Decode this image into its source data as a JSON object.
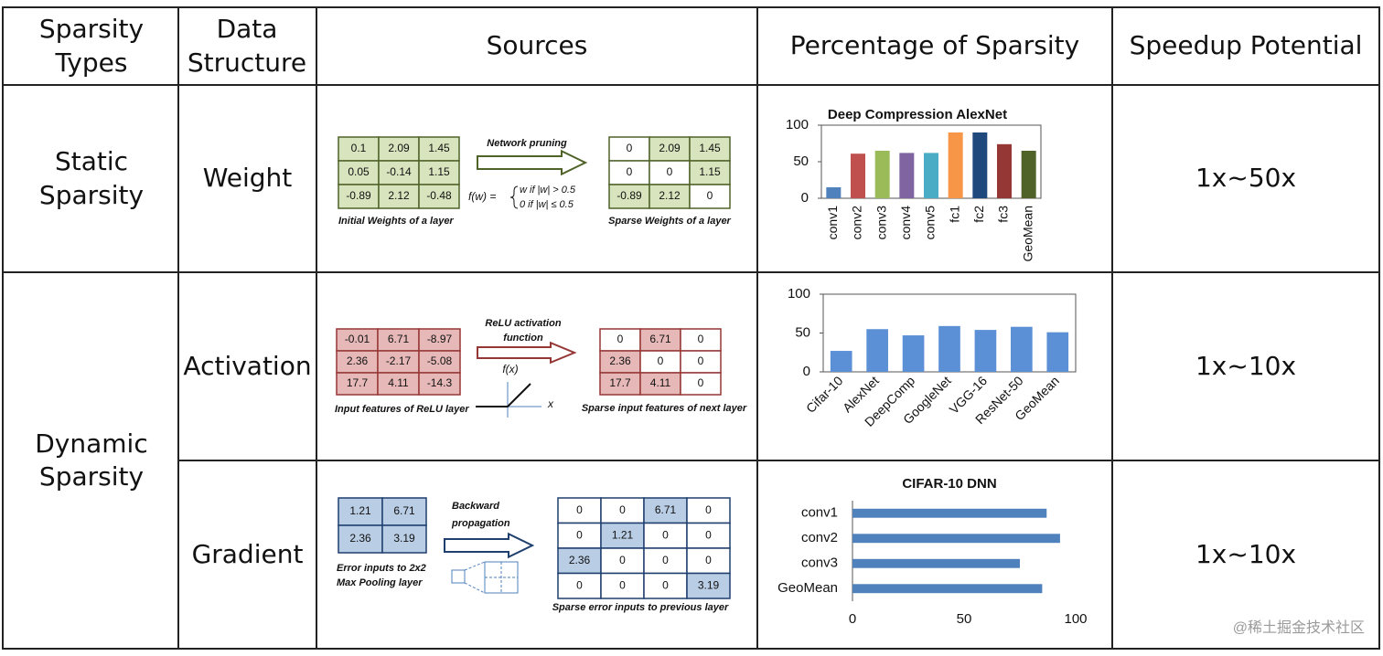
{
  "table": {
    "headers": [
      "Sparsity Types",
      "Data Structure",
      "Sources",
      "Percentage of Sparsity",
      "Speedup Potential"
    ],
    "groups": [
      "Static Sparsity",
      "Dynamic Sparsity"
    ],
    "rows": [
      {
        "structure": "Weight",
        "speedup": "1x~50x",
        "source": {
          "input": [
            [
              "0.1",
              "2.09",
              "1.45"
            ],
            [
              "0.05",
              "-0.14",
              "1.15"
            ],
            [
              "-0.89",
              "2.12",
              "-0.48"
            ]
          ],
          "input_caption": [
            "Initial Weights of a layer"
          ],
          "arrow_label": [
            "Network pruning"
          ],
          "formula": [
            "f(w) =",
            "w if |w| > 0.5",
            "0 if |w| ≤ 0.5"
          ],
          "output": [
            [
              "0",
              "2.09",
              "1.45"
            ],
            [
              "0",
              "0",
              "1.15"
            ],
            [
              "-0.89",
              "2.12",
              "0"
            ]
          ],
          "output_caption": "Sparse Weights of a layer"
        }
      },
      {
        "structure": "Activation",
        "speedup": "1x~10x",
        "source": {
          "input": [
            [
              "-0.01",
              "6.71",
              "-8.97"
            ],
            [
              "2.36",
              "-2.17",
              "-5.08"
            ],
            [
              "17.7",
              "4.11",
              "-14.3"
            ]
          ],
          "input_caption": [
            "Input features of ReLU layer"
          ],
          "arrow_label": [
            "ReLU activation",
            "function"
          ],
          "function_label": "f(x)",
          "axis_label": "x",
          "output": [
            [
              "0",
              "6.71",
              "0"
            ],
            [
              "2.36",
              "0",
              "0"
            ],
            [
              "17.7",
              "4.11",
              "0"
            ]
          ],
          "output_caption": "Sparse input features of next layer"
        }
      },
      {
        "structure": "Gradient",
        "speedup": "1x~10x",
        "source": {
          "input": [
            [
              "1.21",
              "6.71"
            ],
            [
              "2.36",
              "3.19"
            ]
          ],
          "input_caption": [
            "Error inputs to 2x2",
            "Max Pooling layer"
          ],
          "arrow_label": [
            "Backward",
            "propagation"
          ],
          "output": [
            [
              "0",
              "0",
              "6.71",
              "0"
            ],
            [
              "0",
              "1.21",
              "0",
              "0"
            ],
            [
              "2.36",
              "0",
              "0",
              "0"
            ],
            [
              "0",
              "0",
              "0",
              "3.19"
            ]
          ],
          "output_caption": "Sparse error inputs to previous layer"
        }
      }
    ]
  },
  "chart_data": [
    {
      "type": "bar",
      "title": "Deep Compression AlexNet",
      "categories": [
        "conv1",
        "conv2",
        "conv3",
        "conv4",
        "conv5",
        "fc1",
        "fc2",
        "fc3",
        "GeoMean"
      ],
      "values": [
        15,
        61,
        65,
        62,
        62,
        90,
        90,
        74,
        65
      ],
      "colors": [
        "#4f81bd",
        "#c0504d",
        "#9bbb59",
        "#8064a2",
        "#4bacc6",
        "#f79646",
        "#1f497d",
        "#953735",
        "#4f6228"
      ],
      "ylim": [
        0,
        100
      ],
      "yticks": [
        0,
        50,
        100
      ]
    },
    {
      "type": "bar",
      "categories": [
        "Cifar-10",
        "AlexNet",
        "DeepComp",
        "GoogleNet",
        "VGG-16",
        "ResNet-50",
        "GeoMean"
      ],
      "values": [
        27,
        55,
        47,
        59,
        54,
        58,
        51
      ],
      "color": "#5b8fd6",
      "ylim": [
        0,
        100
      ],
      "yticks": [
        0,
        50,
        100
      ]
    },
    {
      "type": "barh",
      "title": "CIFAR-10 DNN",
      "categories": [
        "conv1",
        "conv2",
        "conv3",
        "GeoMean"
      ],
      "values": [
        87,
        93,
        75,
        85
      ],
      "color": "#4f81bd",
      "xlim": [
        0,
        100
      ],
      "xticks": [
        0,
        50,
        100
      ]
    }
  ],
  "watermark": "@稀土掘金技术社区"
}
